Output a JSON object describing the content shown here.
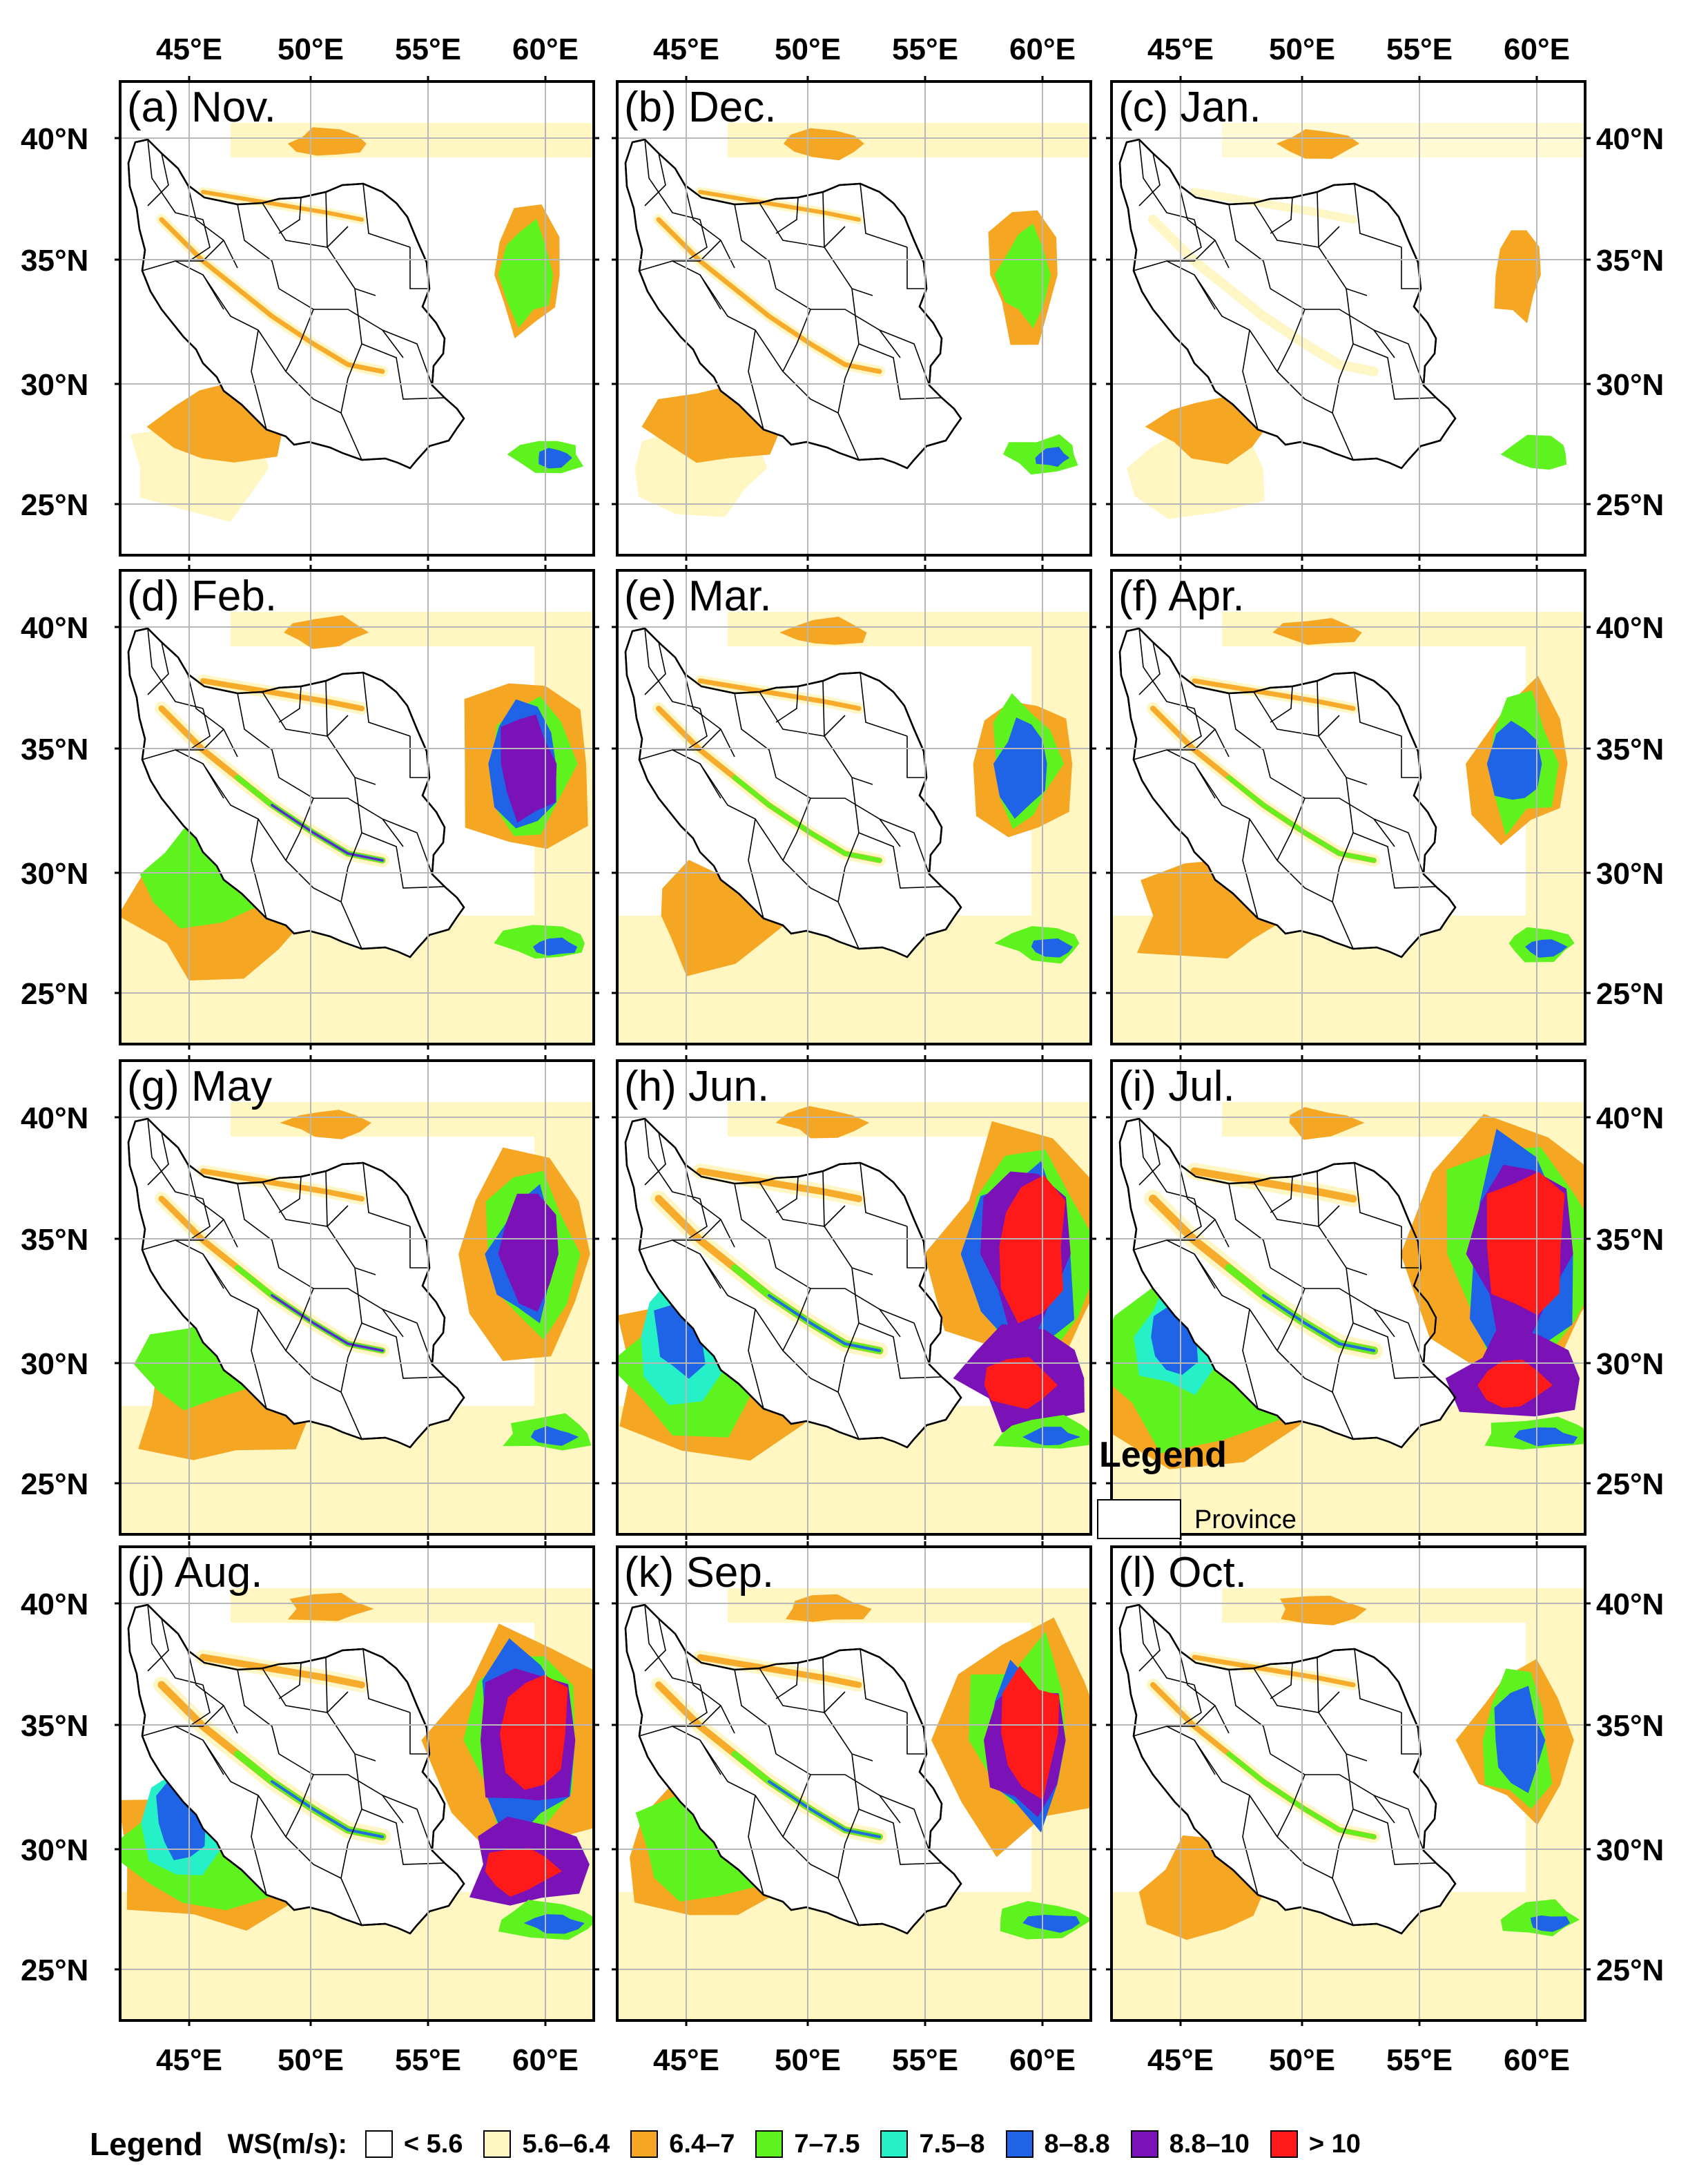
{
  "panels": [
    {
      "label": "(a) Nov.",
      "level": 1
    },
    {
      "label": "(b) Dec.",
      "level": 1
    },
    {
      "label": "(c) Jan.",
      "level": 0
    },
    {
      "label": "(d) Feb.",
      "level": 3
    },
    {
      "label": "(e) Mar.",
      "level": 2
    },
    {
      "label": "(f) Apr.",
      "level": 2
    },
    {
      "label": "(g) May",
      "level": 3
    },
    {
      "label": "(h) Jun.",
      "level": 5
    },
    {
      "label": "(i) Jul.",
      "level": 6
    },
    {
      "label": "(j) Aug.",
      "level": 5
    },
    {
      "label": "(k) Sep.",
      "level": 4
    },
    {
      "label": "(l) Oct.",
      "level": 2
    }
  ],
  "axes": {
    "lon_labels": [
      "45°E",
      "50°E",
      "55°E",
      "60°E"
    ],
    "lat_labels": [
      "40°N",
      "35°N",
      "30°N",
      "25°N"
    ]
  },
  "inset_legend": {
    "title": "Legend",
    "item": "Province"
  },
  "legend": {
    "title": "Legend",
    "variable": "WS(m/s):",
    "classes": [
      {
        "label": "< 5.6",
        "color": "#ffffff"
      },
      {
        "label": "5.6–6.4",
        "color": "#fff6c2"
      },
      {
        "label": "6.4–7",
        "color": "#f5a623"
      },
      {
        "label": "7–7.5",
        "color": "#5ef21e"
      },
      {
        "label": "7.5–8",
        "color": "#26f0c8"
      },
      {
        "label": "8–8.8",
        "color": "#1f64e6"
      },
      {
        "label": "8.8–10",
        "color": "#7a12b8"
      },
      {
        "label": "> 10",
        "color": "#ff1a1a"
      }
    ]
  }
}
